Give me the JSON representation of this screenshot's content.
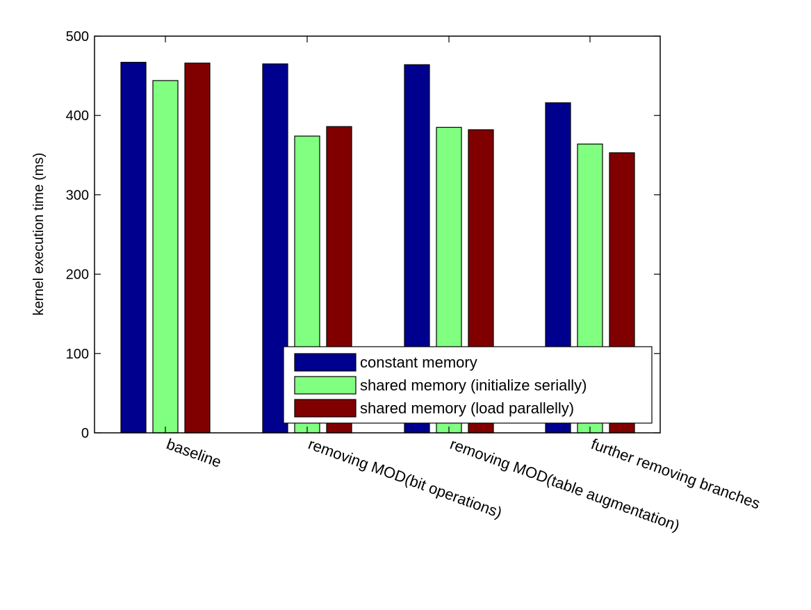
{
  "chart_data": {
    "type": "bar",
    "ylabel": "kernel execution time (ms)",
    "ylim": [
      0,
      500
    ],
    "yticks": [
      0,
      100,
      200,
      300,
      400,
      500
    ],
    "grid": false,
    "legend_position": "bottom-right",
    "categories": [
      "baseline",
      "removing MOD(bit operations)",
      "removing MOD(table augmentation)",
      "further removing branches"
    ],
    "series": [
      {
        "name": "constant memory",
        "color": "#00008f",
        "values": [
          467,
          465,
          464,
          416
        ]
      },
      {
        "name": "shared memory (initialize serially)",
        "color": "#80ff80",
        "values": [
          444,
          374,
          385,
          364
        ]
      },
      {
        "name": "shared memory (load parallelly)",
        "color": "#800000",
        "values": [
          466,
          386,
          382,
          353
        ]
      }
    ]
  }
}
